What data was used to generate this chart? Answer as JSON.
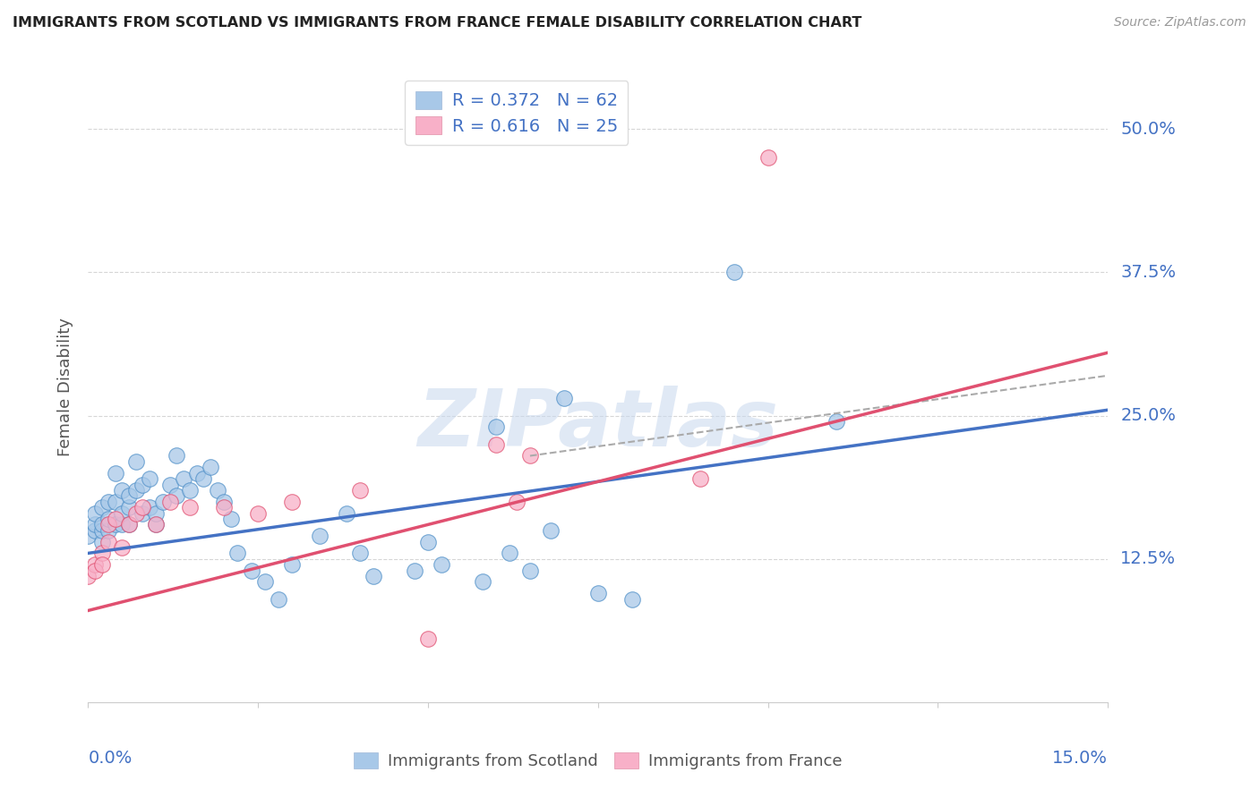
{
  "title": "IMMIGRANTS FROM SCOTLAND VS IMMIGRANTS FROM FRANCE FEMALE DISABILITY CORRELATION CHART",
  "source": "Source: ZipAtlas.com",
  "ylabel": "Female Disability",
  "ytick_labels": [
    "50.0%",
    "37.5%",
    "25.0%",
    "12.5%"
  ],
  "ytick_values": [
    0.5,
    0.375,
    0.25,
    0.125
  ],
  "xlim": [
    0.0,
    0.15
  ],
  "ylim": [
    0.0,
    0.55
  ],
  "watermark_text": "ZIPatlas",
  "legend_scotland_R": 0.372,
  "legend_scotland_N": 62,
  "legend_france_R": 0.616,
  "legend_france_N": 25,
  "scotland_line_color": "#4472c4",
  "france_line_color": "#e05070",
  "scotland_dot_fill": "#a8c8e8",
  "scotland_dot_edge": "#5090c8",
  "france_dot_fill": "#f8b0c8",
  "france_dot_edge": "#e05070",
  "dashed_line_color": "#aaaaaa",
  "background_color": "#ffffff",
  "grid_color": "#cccccc",
  "legend_square_scotland": "#a8c8e8",
  "legend_square_france": "#f8b0c8",
  "scotland_x": [
    0.0,
    0.001,
    0.001,
    0.001,
    0.002,
    0.002,
    0.002,
    0.002,
    0.003,
    0.003,
    0.003,
    0.004,
    0.004,
    0.004,
    0.005,
    0.005,
    0.005,
    0.006,
    0.006,
    0.006,
    0.007,
    0.007,
    0.008,
    0.008,
    0.009,
    0.009,
    0.01,
    0.01,
    0.011,
    0.012,
    0.013,
    0.013,
    0.014,
    0.015,
    0.016,
    0.017,
    0.018,
    0.019,
    0.02,
    0.021,
    0.022,
    0.024,
    0.026,
    0.028,
    0.03,
    0.034,
    0.038,
    0.04,
    0.042,
    0.048,
    0.05,
    0.052,
    0.058,
    0.06,
    0.062,
    0.065,
    0.068,
    0.07,
    0.075,
    0.08,
    0.095,
    0.11
  ],
  "scotland_y": [
    0.145,
    0.15,
    0.155,
    0.165,
    0.14,
    0.15,
    0.155,
    0.17,
    0.15,
    0.16,
    0.175,
    0.155,
    0.175,
    0.2,
    0.155,
    0.165,
    0.185,
    0.155,
    0.17,
    0.18,
    0.185,
    0.21,
    0.165,
    0.19,
    0.17,
    0.195,
    0.155,
    0.165,
    0.175,
    0.19,
    0.18,
    0.215,
    0.195,
    0.185,
    0.2,
    0.195,
    0.205,
    0.185,
    0.175,
    0.16,
    0.13,
    0.115,
    0.105,
    0.09,
    0.12,
    0.145,
    0.165,
    0.13,
    0.11,
    0.115,
    0.14,
    0.12,
    0.105,
    0.24,
    0.13,
    0.115,
    0.15,
    0.265,
    0.095,
    0.09,
    0.375,
    0.245
  ],
  "france_x": [
    0.0,
    0.001,
    0.001,
    0.002,
    0.002,
    0.003,
    0.003,
    0.004,
    0.005,
    0.006,
    0.007,
    0.008,
    0.01,
    0.012,
    0.015,
    0.02,
    0.025,
    0.03,
    0.04,
    0.05,
    0.06,
    0.063,
    0.065,
    0.09,
    0.1
  ],
  "france_y": [
    0.11,
    0.12,
    0.115,
    0.13,
    0.12,
    0.14,
    0.155,
    0.16,
    0.135,
    0.155,
    0.165,
    0.17,
    0.155,
    0.175,
    0.17,
    0.17,
    0.165,
    0.175,
    0.185,
    0.055,
    0.225,
    0.175,
    0.215,
    0.195,
    0.475
  ],
  "scotland_trendline_x": [
    0.0,
    0.15
  ],
  "scotland_trendline_y": [
    0.13,
    0.255
  ],
  "france_trendline_x": [
    0.0,
    0.15
  ],
  "france_trendline_y": [
    0.08,
    0.305
  ],
  "dashed_line_x": [
    0.065,
    0.15
  ],
  "dashed_line_y": [
    0.215,
    0.285
  ]
}
